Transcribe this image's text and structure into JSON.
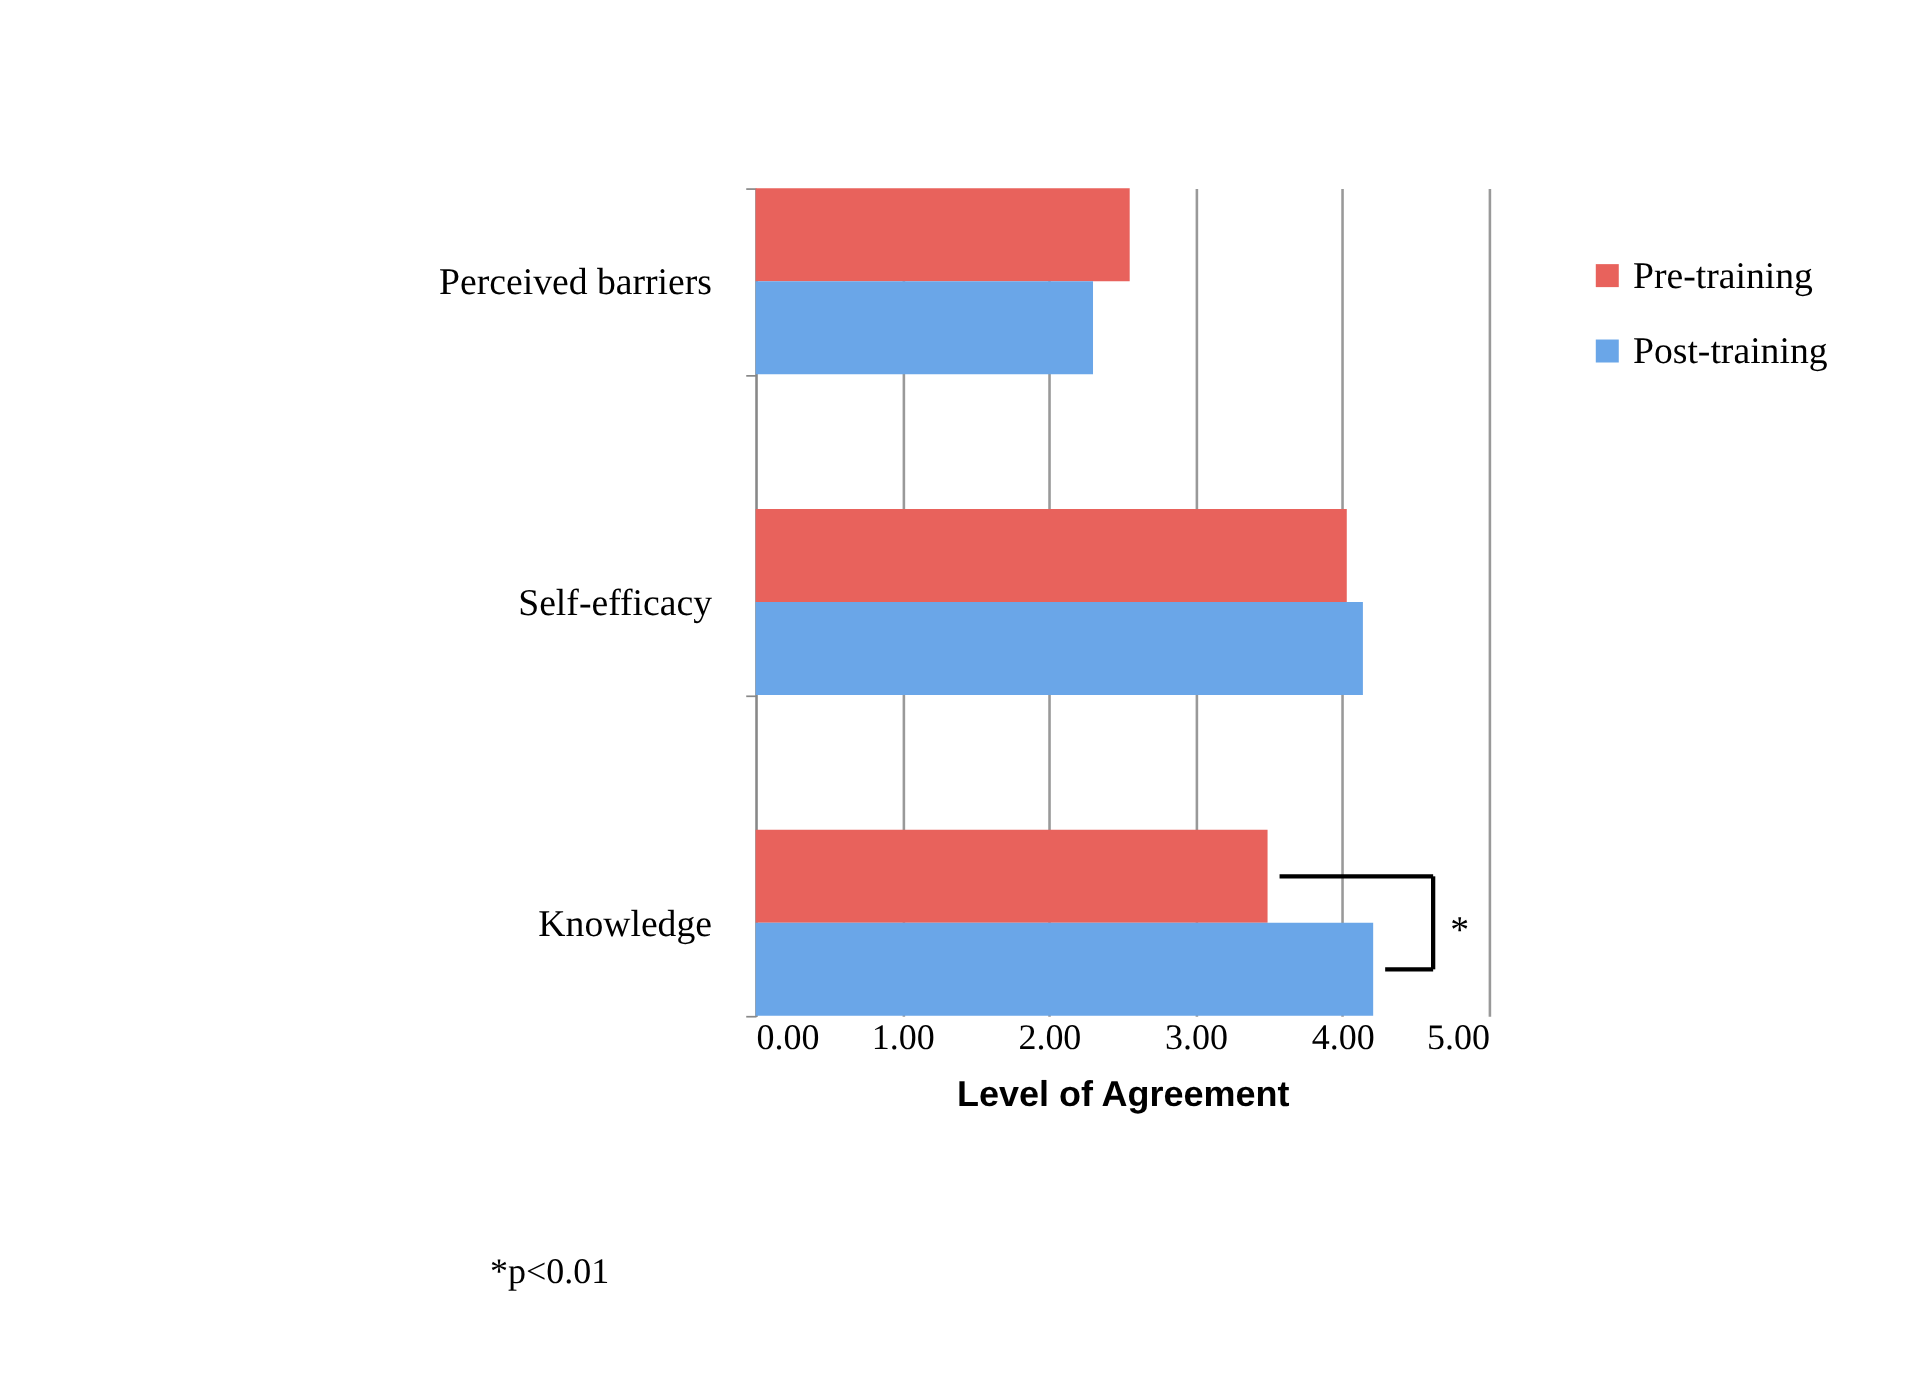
{
  "chart_data": {
    "type": "bar",
    "orientation": "horizontal",
    "xlabel": "Level of Agreement",
    "categories": [
      "Perceived barriers",
      "Self-efficacy",
      "Knowledge"
    ],
    "series": [
      {
        "name": "Pre-training",
        "color": "#e8625c",
        "values": [
          2.55,
          4.03,
          3.49
        ]
      },
      {
        "name": "Post-training",
        "color": "#6aa6e8",
        "values": [
          2.3,
          4.14,
          4.21
        ]
      }
    ],
    "xlim": [
      0,
      5
    ],
    "xticks": [
      {
        "value": 0,
        "label": "0.00"
      },
      {
        "value": 1,
        "label": "1.00"
      },
      {
        "value": 2,
        "label": "2.00"
      },
      {
        "value": 3,
        "label": "3.00"
      },
      {
        "value": 4,
        "label": "4.00"
      },
      {
        "value": 5,
        "label": "5.00"
      }
    ],
    "grid": "x",
    "legend": "right",
    "annotations": [
      "*",
      "*p<0.01"
    ]
  }
}
